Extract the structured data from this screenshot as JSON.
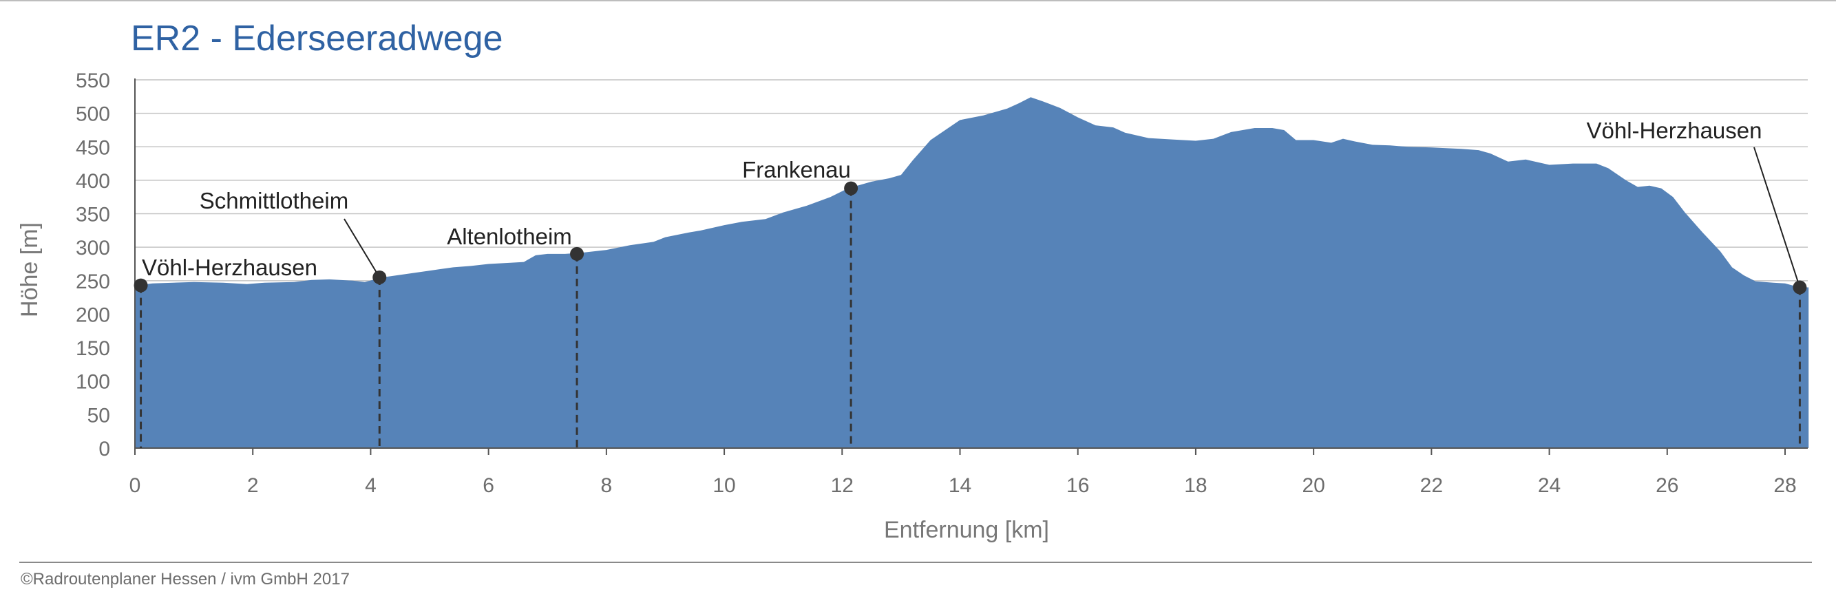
{
  "chart_data": {
    "type": "area",
    "title": "ER2 - Ederseeradwege",
    "xlabel": "Entfernung [km]",
    "ylabel": "Höhe [m]",
    "xlim": [
      0,
      28.4
    ],
    "ylim": [
      0,
      550
    ],
    "x_ticks": [
      0,
      2,
      4,
      6,
      8,
      10,
      12,
      14,
      16,
      18,
      20,
      22,
      24,
      26,
      28
    ],
    "y_ticks": [
      0,
      50,
      100,
      150,
      200,
      250,
      300,
      350,
      400,
      450,
      500,
      550
    ],
    "grid": "horizontal",
    "fill_color": "#5683b8",
    "series": [
      {
        "x": [
          0,
          0.3,
          1.0,
          1.5,
          1.9,
          2.2,
          2.7,
          3.0,
          3.3,
          3.7,
          3.9,
          4.2,
          4.6,
          5.0,
          5.4,
          5.7,
          6.0,
          6.4,
          6.6,
          6.8,
          7.0,
          7.3,
          7.6,
          8.0,
          8.4,
          8.8,
          9.0,
          9.4,
          9.6,
          10.0,
          10.3,
          10.7,
          11.0,
          11.4,
          11.8,
          12.1,
          12.5,
          12.8,
          13.0,
          13.2,
          13.5,
          13.8,
          14.0,
          14.4,
          14.8,
          15.0,
          15.2,
          15.4,
          15.7,
          16.0,
          16.3,
          16.6,
          16.8,
          17.2,
          17.6,
          18.0,
          18.3,
          18.6,
          19.0,
          19.3,
          19.5,
          19.7,
          20.0,
          20.3,
          20.5,
          20.7,
          21.0,
          21.3,
          21.6,
          22.0,
          22.5,
          22.8,
          23.0,
          23.3,
          23.6,
          24.0,
          24.4,
          24.8,
          25.0,
          25.3,
          25.5,
          25.7,
          25.9,
          26.1,
          26.3,
          26.6,
          26.9,
          27.1,
          27.3,
          27.5,
          27.8,
          28.0,
          28.25,
          28.4
        ],
        "y": [
          243,
          246,
          248,
          247,
          245,
          247,
          248,
          251,
          252,
          250,
          248,
          255,
          260,
          265,
          270,
          272,
          275,
          277,
          278,
          288,
          290,
          290,
          292,
          296,
          303,
          308,
          315,
          322,
          325,
          333,
          338,
          342,
          352,
          362,
          375,
          388,
          398,
          403,
          408,
          430,
          460,
          478,
          490,
          497,
          507,
          515,
          524,
          518,
          508,
          494,
          482,
          479,
          471,
          463,
          461,
          459,
          462,
          472,
          478,
          478,
          475,
          460,
          460,
          456,
          462,
          458,
          453,
          452,
          450,
          449,
          447,
          445,
          440,
          428,
          431,
          423,
          425,
          425,
          418,
          400,
          390,
          392,
          388,
          375,
          352,
          322,
          294,
          270,
          258,
          249,
          247,
          246,
          240,
          240
        ]
      }
    ],
    "waypoints": [
      {
        "name": "Vöhl-Herzhausen",
        "x": 0.1,
        "y": 243
      },
      {
        "name": "Schmittlotheim",
        "x": 4.15,
        "y": 255
      },
      {
        "name": "Altenlotheim",
        "x": 7.5,
        "y": 290
      },
      {
        "name": "Frankenau",
        "x": 12.15,
        "y": 388
      },
      {
        "name": "Vöhl-Herzhausen",
        "x": 28.25,
        "y": 240
      }
    ]
  },
  "footer": {
    "credit": "©Radroutenplaner Hessen / ivm GmbH 2017"
  }
}
